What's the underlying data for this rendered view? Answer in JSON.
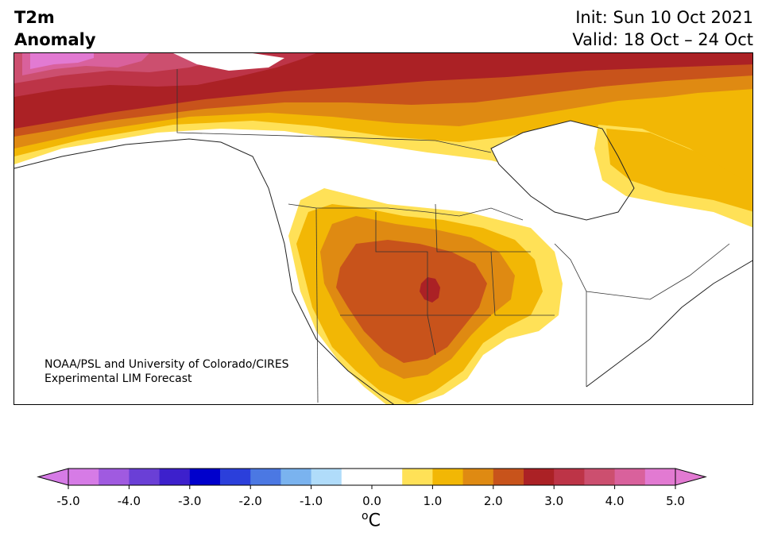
{
  "title": {
    "line1": "T2m",
    "line2": "Anomaly"
  },
  "dates": {
    "init": "Init: Sun 10 Oct 2021",
    "valid": "Valid: 18 Oct – 24 Oct"
  },
  "credit": {
    "line1": "NOAA/PSL and University of Colorado/CIRES",
    "line2": "Experimental LIM Forecast"
  },
  "colorbar": {
    "unit": "oC",
    "ticks": [
      "-5.0",
      "-4.0",
      "-3.0",
      "-2.0",
      "-1.0",
      "0.0",
      "1.0",
      "2.0",
      "3.0",
      "4.0",
      "5.0"
    ],
    "colors": [
      "#d67be6",
      "#a05ae0",
      "#6a3fd6",
      "#3d20cc",
      "#0000cc",
      "#2b3fdb",
      "#4b78e3",
      "#7ab3ef",
      "#b0dcfa",
      "#ffffff",
      "#ffffff",
      "#ffe157",
      "#f2b705",
      "#df8a12",
      "#c8531b",
      "#ab2125",
      "#bd3447",
      "#cc4f6f",
      "#d9619c",
      "#e27ad2"
    ],
    "extend_low": "#d67be6",
    "extend_high": "#e27ad2"
  },
  "map_colors": {
    "c05": "#ffe157",
    "c10": "#f2b705",
    "c15": "#df8a12",
    "c20": "#c8531b",
    "c25": "#ab2125",
    "c30": "#bd3447",
    "c35": "#cc4f6f",
    "c40": "#d9619c",
    "c45": "#e27ad2"
  }
}
